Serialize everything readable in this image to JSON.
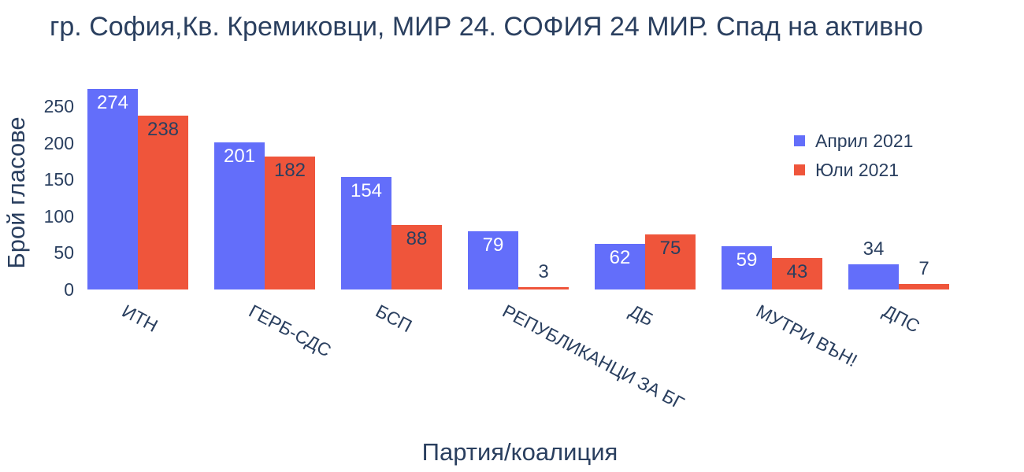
{
  "chart_data": {
    "type": "bar",
    "title": "гр. София,Кв. Кремиковци, МИР 24. СОФИЯ 24 МИР. Спад на активно",
    "xlabel": "Партия/коалиция",
    "ylabel": "Брой гласове",
    "categories": [
      "ИТН",
      "ГЕРБ-СДС",
      "БСП",
      "РЕПУБЛИКАНЦИ ЗА БГ",
      "ДБ",
      "МУТРИ ВЪН!",
      "ДПС"
    ],
    "series": [
      {
        "name": "Април 2021",
        "color": "#636EFA",
        "values": [
          274,
          201,
          154,
          79,
          62,
          59,
          34
        ]
      },
      {
        "name": "Юли 2021",
        "color": "#EF553B",
        "values": [
          238,
          182,
          88,
          3,
          75,
          43,
          7
        ]
      }
    ],
    "yticks": [
      0,
      50,
      100,
      150,
      200,
      250
    ],
    "ylim": [
      0,
      274
    ],
    "grid": false,
    "legend_position": "inside-right"
  },
  "colors": {
    "text": "#2a3f5f",
    "background": "#ffffff",
    "label_inside_series1": "#ffffff",
    "label_inside_series2": "#2a3f5f"
  }
}
